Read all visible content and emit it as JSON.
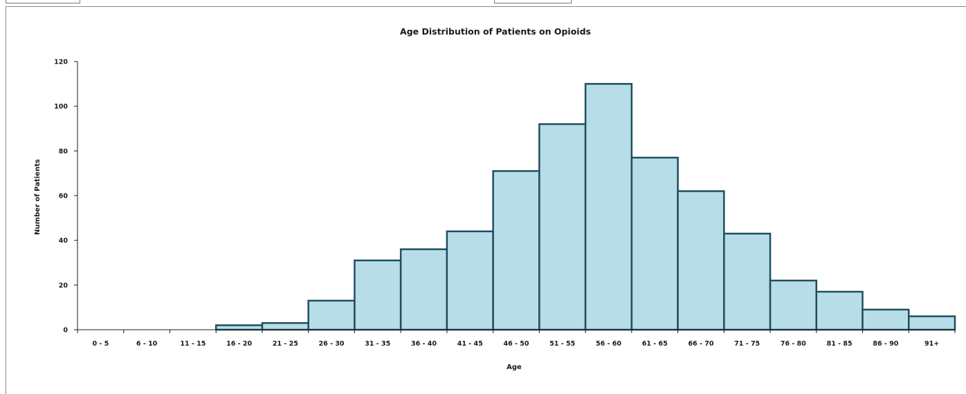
{
  "chart_data": {
    "type": "bar",
    "title": "Age Distribution of Patients on Opioids",
    "xlabel": "Age",
    "ylabel": "Number of Patients",
    "categories": [
      "0 - 5",
      "6 - 10",
      "11 - 15",
      "16 - 20",
      "21 - 25",
      "26 - 30",
      "31 - 35",
      "36 - 40",
      "41 - 45",
      "46 - 50",
      "51 - 55",
      "56 - 60",
      "61 - 65",
      "66 - 70",
      "71 - 75",
      "76 - 80",
      "81 - 85",
      "86 - 90",
      "91+"
    ],
    "values": [
      0,
      0,
      0,
      2,
      3,
      13,
      31,
      36,
      44,
      71,
      92,
      110,
      77,
      62,
      43,
      22,
      17,
      9,
      6
    ],
    "ylim": [
      0,
      120
    ],
    "yticks": [
      0,
      20,
      40,
      60,
      80,
      100,
      120
    ],
    "grid": false,
    "legend": "none",
    "colors": {
      "bar_fill": "#b7dde8",
      "bar_stroke": "#1f4e5f",
      "axis": "#1a1a1a"
    }
  }
}
